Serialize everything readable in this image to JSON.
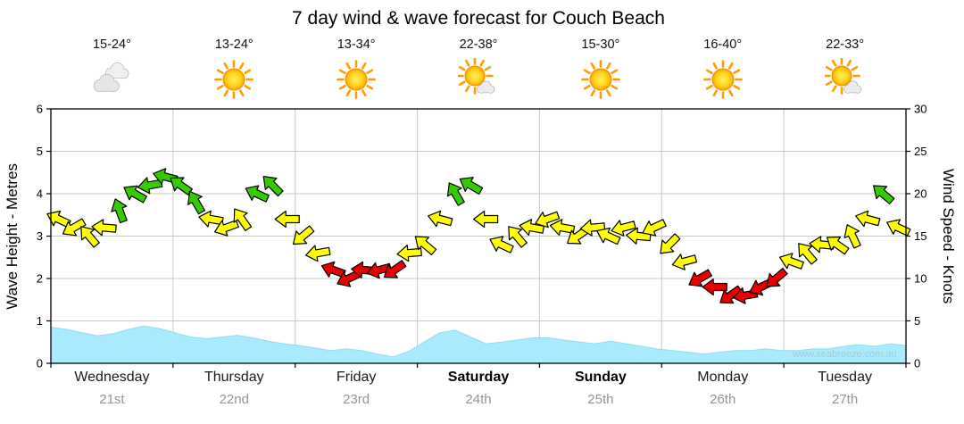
{
  "title": "7 day wind & wave forecast for Couch Beach",
  "watermark": "www.seabreeze.com.au",
  "colors": {
    "green": "#33cc00",
    "yellow": "#ffff00",
    "red": "#e80000",
    "arrow_outline": "#000000",
    "wave_fill": "#aaeaff",
    "wave_stroke": "#8fdcf2",
    "grid": "#c8c8c8",
    "axis": "#000000",
    "date_text": "#949494",
    "watermark_text": "#a4cbd6"
  },
  "axes": {
    "left_label": "Wave Height - Metres",
    "right_label": "Wind Speed - Knots",
    "left_ticks": [
      0,
      1,
      2,
      3,
      4,
      5,
      6
    ],
    "right_ticks": [
      0,
      5,
      10,
      15,
      20,
      25,
      30
    ],
    "left_max": 6,
    "right_max": 30
  },
  "days": [
    {
      "name": "Wednesday",
      "date": "21st",
      "temp": "15-24°",
      "icon": "cloudy",
      "weekend": false
    },
    {
      "name": "Thursday",
      "date": "22nd",
      "temp": "13-24°",
      "icon": "sunny",
      "weekend": false
    },
    {
      "name": "Friday",
      "date": "23rd",
      "temp": "13-34°",
      "icon": "sunny",
      "weekend": false
    },
    {
      "name": "Saturday",
      "date": "24th",
      "temp": "22-38°",
      "icon": "mostly-sunny",
      "weekend": true
    },
    {
      "name": "Sunday",
      "date": "25th",
      "temp": "15-30°",
      "icon": "sunny",
      "weekend": true
    },
    {
      "name": "Monday",
      "date": "26th",
      "temp": "16-40°",
      "icon": "sunny",
      "weekend": false
    },
    {
      "name": "Tuesday",
      "date": "27th",
      "temp": "22-33°",
      "icon": "mostly-sunny",
      "weekend": false
    }
  ],
  "chart_data": [
    {
      "type": "scatter",
      "name": "wind-speed-arrows",
      "unit": "knots",
      "ylabel": "Wind Speed - Knots",
      "ylim": [
        0,
        30
      ],
      "points_per_day": 8,
      "categories": [
        "Wednesday 21st",
        "Thursday 22nd",
        "Friday 23rd",
        "Saturday 24th",
        "Sunday 25th",
        "Monday 26th",
        "Tuesday 27th"
      ],
      "color_thresholds": {
        "green_min_knots": 18,
        "red_below_knots": 12
      },
      "speeds": [
        17,
        16,
        15,
        16,
        18,
        20,
        21,
        22,
        21,
        19,
        17,
        16,
        17,
        20,
        21,
        17,
        15,
        13,
        11,
        10,
        11,
        11,
        11,
        13,
        14,
        17,
        20,
        21,
        17,
        14,
        15,
        16,
        17,
        16,
        15,
        16,
        15,
        16,
        15,
        16,
        14,
        12,
        10,
        9,
        8,
        8,
        9,
        10,
        12,
        13,
        14,
        14,
        15,
        17,
        20,
        16
      ],
      "directions_deg": [
        205,
        150,
        230,
        185,
        250,
        210,
        170,
        195,
        215,
        240,
        190,
        160,
        235,
        205,
        225,
        180,
        140,
        170,
        200,
        155,
        185,
        165,
        145,
        175,
        220,
        195,
        240,
        210,
        180,
        205,
        230,
        190,
        160,
        190,
        145,
        175,
        205,
        165,
        185,
        155,
        135,
        165,
        150,
        180,
        145,
        170,
        155,
        140,
        200,
        230,
        185,
        215,
        245,
        195,
        220,
        205
      ]
    },
    {
      "type": "area",
      "name": "wave-height",
      "unit": "metres",
      "ylabel": "Wave Height - Metres",
      "ylim": [
        0,
        6
      ],
      "points_per_day": 8,
      "values": [
        0.85,
        0.8,
        0.72,
        0.65,
        0.7,
        0.8,
        0.88,
        0.82,
        0.72,
        0.62,
        0.58,
        0.62,
        0.66,
        0.6,
        0.52,
        0.46,
        0.42,
        0.36,
        0.3,
        0.34,
        0.3,
        0.22,
        0.15,
        0.28,
        0.5,
        0.72,
        0.78,
        0.62,
        0.46,
        0.5,
        0.55,
        0.6,
        0.6,
        0.55,
        0.5,
        0.46,
        0.52,
        0.46,
        0.4,
        0.34,
        0.3,
        0.26,
        0.22,
        0.26,
        0.3,
        0.3,
        0.34,
        0.3,
        0.3,
        0.34,
        0.34,
        0.4,
        0.44,
        0.4,
        0.46,
        0.42
      ]
    }
  ]
}
